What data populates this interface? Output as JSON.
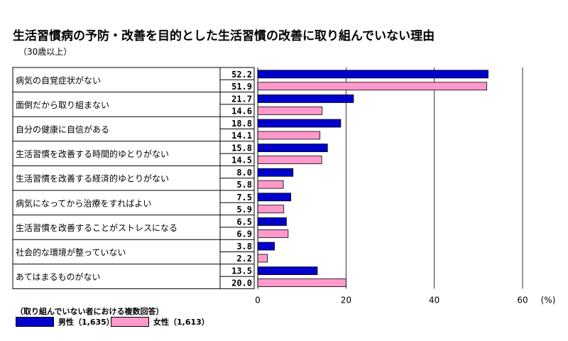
{
  "title": "生活習慣病の予防・改善を目的とした生活習慣の改善に取り組んでいない理由",
  "subtitle": "（30歳以上）",
  "chart_data": {
    "type": "bar",
    "orientation": "horizontal",
    "categories": [
      "病気の自覚症状がない",
      "面倒だから取り組まない",
      "自分の健康に自信がある",
      "生活習慣を改善する時間的ゆとりがない",
      "生活習慣を改善する経済的ゆとりがない",
      "病気になってから治療をすればよい",
      "生活習慣を改善することがストレスになる",
      "社会的な環境が整っていない",
      "あてはまるものがない"
    ],
    "series": [
      {
        "name": "男性（1,635）",
        "color": "#0000cc",
        "values": [
          52.2,
          21.7,
          18.8,
          15.8,
          8.0,
          7.5,
          6.5,
          3.8,
          13.5
        ],
        "labels": [
          "52.2",
          "21.7",
          "18.8",
          "15.8",
          "8.0",
          "7.5",
          "6.5",
          "3.8",
          "13.5"
        ]
      },
      {
        "name": "女性（1,613）",
        "color": "#ff99cc",
        "values": [
          51.9,
          14.6,
          14.1,
          14.5,
          5.8,
          5.9,
          6.9,
          2.2,
          20.0
        ],
        "labels": [
          "51.9",
          "14.6",
          "14.1",
          "14.5",
          "5.8",
          "5.9",
          "6.9",
          "2.2",
          "20.0"
        ]
      }
    ],
    "x_ticks": [
      "0",
      "20",
      "40",
      "60"
    ],
    "x_unit": "(%)",
    "xlim": [
      0,
      60
    ],
    "grid": true,
    "legend_position": "bottom-left"
  },
  "note": "（取り組んでいない者における複数回答）"
}
